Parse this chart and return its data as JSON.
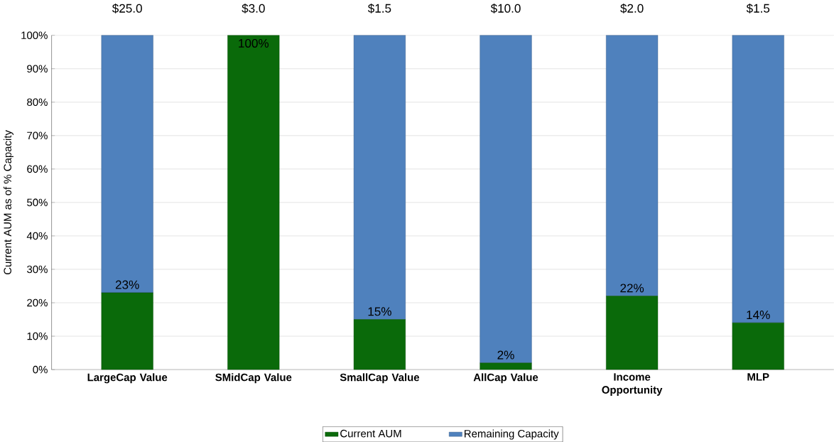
{
  "chart_data": {
    "type": "bar",
    "stacked": true,
    "ylabel": "Current AUM as of % Capacity",
    "categories": [
      "LargeCap Value",
      "SMidCap Value",
      "SmallCap Value",
      "AllCap Value",
      "Income Opportunity",
      "MLP"
    ],
    "series": [
      {
        "name": "Current AUM",
        "color": "#0a6a0a",
        "values": [
          23,
          100,
          15,
          2,
          22,
          14
        ],
        "value_labels": [
          "23%",
          "100%",
          "15%",
          "2%",
          "22%",
          "14%"
        ]
      },
      {
        "name": "Remaining Capacity",
        "color": "#4f81bd",
        "values": [
          77,
          0,
          85,
          98,
          78,
          86
        ]
      }
    ],
    "annotations": [
      "$25.0",
      "$3.0",
      "$1.5",
      "$10.0",
      "$2.0",
      "$1.5"
    ],
    "ylim": [
      0,
      100
    ],
    "yticks": [
      {
        "value": 0,
        "label": "0%"
      },
      {
        "value": 10,
        "label": "10%"
      },
      {
        "value": 20,
        "label": "20%"
      },
      {
        "value": 30,
        "label": "30%"
      },
      {
        "value": 40,
        "label": "40%"
      },
      {
        "value": 50,
        "label": "50%"
      },
      {
        "value": 60,
        "label": "60%"
      },
      {
        "value": 70,
        "label": "70%"
      },
      {
        "value": 80,
        "label": "80%"
      },
      {
        "value": 90,
        "label": "90%"
      },
      {
        "value": 100,
        "label": "100%"
      }
    ],
    "grid": "y",
    "legend": "bottom"
  }
}
